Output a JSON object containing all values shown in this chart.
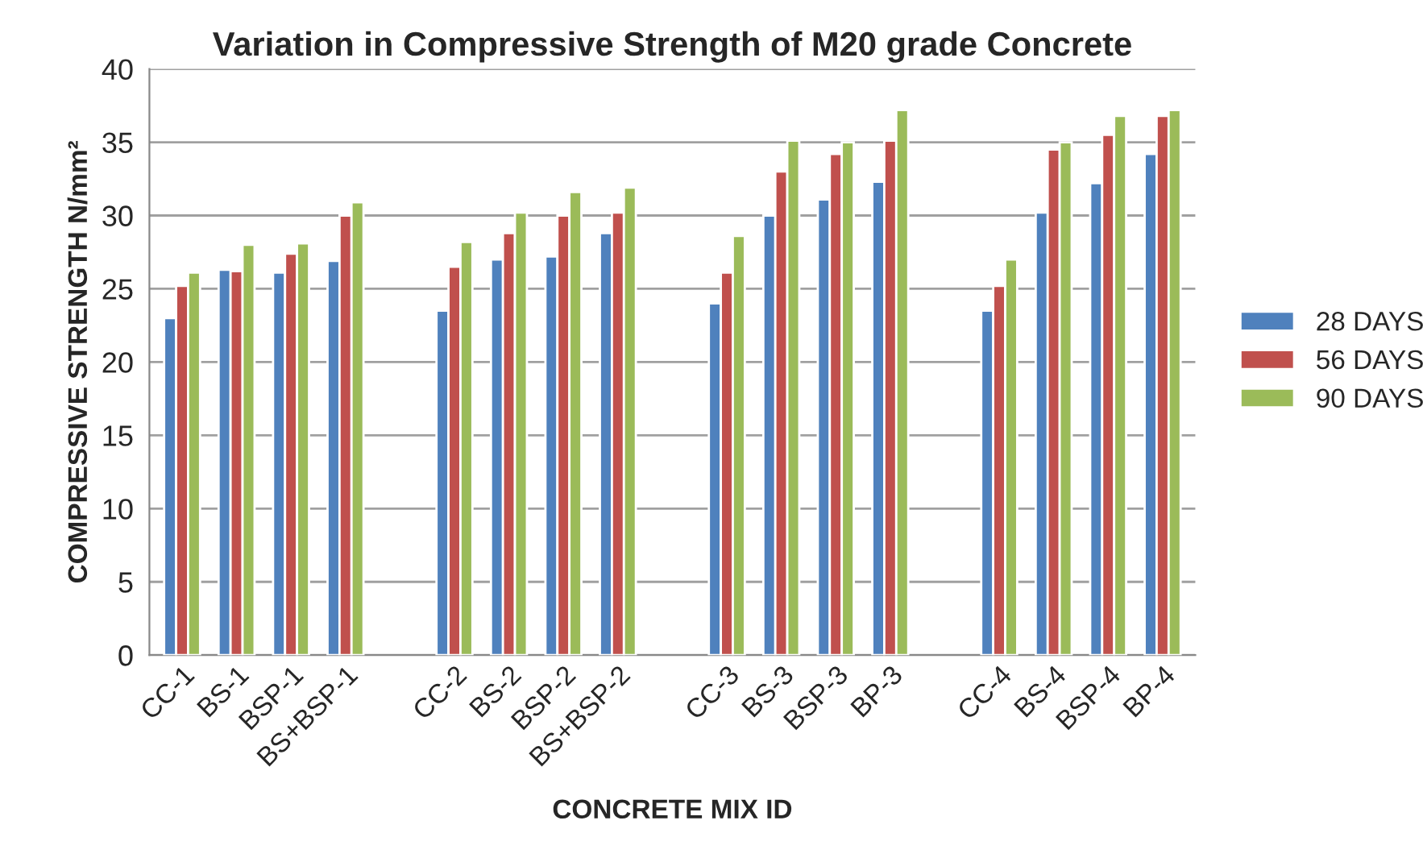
{
  "chart_data": {
    "type": "bar",
    "title": "Variation in Compressive Strength of M20 grade Concrete",
    "xlabel": "CONCRETE MIX ID",
    "ylabel": "COMPRESSIVE STRENGTH N/mm²",
    "categories": [
      "CC-1",
      "BS-1",
      "BSP-1",
      "BS+BSP-1",
      null,
      "CC-2",
      "BS-2",
      "BSP-2",
      "BS+BSP-2",
      null,
      "CC-3",
      "BS-3",
      "BSP-3",
      "BP-3",
      null,
      "CC-4",
      "BS-4",
      "BSP-4",
      "BP-4"
    ],
    "series": [
      {
        "name": "28 DAYS",
        "color": "#4f81bd",
        "values": [
          23.0,
          26.3,
          26.1,
          26.9,
          null,
          23.5,
          27.0,
          27.2,
          28.8,
          null,
          24.0,
          30.0,
          31.1,
          32.3,
          null,
          23.5,
          30.2,
          32.2,
          34.2
        ]
      },
      {
        "name": "56 DAYS",
        "color": "#c0504d",
        "values": [
          25.2,
          26.2,
          27.4,
          30.0,
          null,
          26.5,
          28.8,
          30.0,
          30.2,
          null,
          26.1,
          33.0,
          34.2,
          35.1,
          null,
          25.2,
          34.5,
          35.5,
          36.8
        ]
      },
      {
        "name": "90 DAYS",
        "color": "#9bbb59",
        "values": [
          26.1,
          28.0,
          28.1,
          30.9,
          null,
          28.2,
          30.2,
          31.6,
          31.9,
          null,
          28.6,
          35.1,
          35.0,
          37.2,
          null,
          27.0,
          35.0,
          36.8,
          37.2
        ]
      }
    ],
    "ylim": [
      0,
      40
    ],
    "yticks": [
      0,
      5,
      10,
      15,
      20,
      25,
      30,
      35,
      40
    ],
    "grid": "y",
    "legend": "right"
  }
}
